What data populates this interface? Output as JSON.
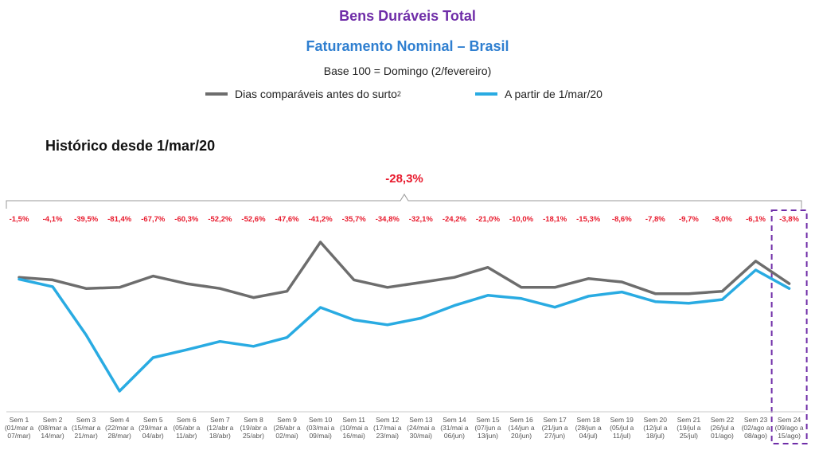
{
  "title": "Bens Duráveis Total",
  "subtitle": "Faturamento Nominal – Brasil",
  "base_note": "Base 100 = Domingo (2/fevereiro)",
  "legend": {
    "gray": {
      "label": "Dias comparáveis antes do surto",
      "sup": "2",
      "color": "#6d6d6d"
    },
    "blue": {
      "label": "A partir de 1/mar/20",
      "color": "#29abe2"
    }
  },
  "section_title": "Histórico desde 1/mar/20",
  "total_change": "-28,3%",
  "colors": {
    "negative": "#e8192c",
    "title": "#6f2da8",
    "subtitle": "#2f7fd0",
    "highlight": "#6f2da8"
  },
  "chart_data": {
    "type": "line",
    "x": [
      "Sem 1",
      "Sem 2",
      "Sem 3",
      "Sem 4",
      "Sem 5",
      "Sem 6",
      "Sem 7",
      "Sem 8",
      "Sem 9",
      "Sem 10",
      "Sem 11",
      "Sem 12",
      "Sem 13",
      "Sem 14",
      "Sem 15",
      "Sem 16",
      "Sem 17",
      "Sem 18",
      "Sem 19",
      "Sem 20",
      "Sem 21",
      "Sem 22",
      "Sem 23",
      "Sem 24"
    ],
    "x_sublabels": [
      "(01/mar a 07/mar)",
      "(08/mar a 14/mar)",
      "(15/mar a 21/mar)",
      "(22/mar a 28/mar)",
      "(29/mar a 04/abr)",
      "(05/abr a 11/abr)",
      "(12/abr a 18/abr)",
      "(19/abr a 25/abr)",
      "(26/abr a 02/mai)",
      "(03/mai a 09/mai)",
      "(10/mai a 16/mai)",
      "(17/mai a 23/mai)",
      "(24/mai a 30/mai)",
      "(31/mai a 06/jun)",
      "(07/jun a 13/jun)",
      "(14/jun a 20/jun)",
      "(21/jun a 27/jun)",
      "(28/jun a 04/jul)",
      "(05/jul a 11/jul)",
      "(12/jul a 18/jul)",
      "(19/jul a 25/jul)",
      "(26/jul a 01/ago)",
      "(02/ago a 08/ago)",
      "(09/ago a 15/ago)"
    ],
    "series": [
      {
        "name": "Dias comparáveis antes do surto2",
        "color": "#6d6d6d",
        "values": [
          100.0,
          97.9,
          90.8,
          91.7,
          101.1,
          94.8,
          90.8,
          83.3,
          88.5,
          129.2,
          97.9,
          91.7,
          95.8,
          100.0,
          108.3,
          91.7,
          91.7,
          99.0,
          96.2,
          86.5,
          86.5,
          88.5,
          113.5,
          94.8
        ]
      },
      {
        "name": "A partir de 1/mar/20",
        "color": "#29abe2",
        "values": [
          98.5,
          92.3,
          52.4,
          5.8,
          33.5,
          40.0,
          46.9,
          42.9,
          50.2,
          75.1,
          64.8,
          60.7,
          66.2,
          76.7,
          85.1,
          82.5,
          75.3,
          84.4,
          87.9,
          79.9,
          78.5,
          81.6,
          106.1,
          90.8
        ]
      }
    ],
    "point_labels": [
      "-1,5%",
      "-4,1%",
      "-39,5%",
      "-81,4%",
      "-67,7%",
      "-60,3%",
      "-52,2%",
      "-52,6%",
      "-47,6%",
      "-41,2%",
      "-35,7%",
      "-34,8%",
      "-32,1%",
      "-24,2%",
      "-21,0%",
      "-10,0%",
      "-18,1%",
      "-15,3%",
      "-8,6%",
      "-7,8%",
      "-9,7%",
      "-8,0%",
      "-6,1%",
      "-3,8%"
    ],
    "ylim": [
      0,
      140
    ],
    "grid": false,
    "legend_position": "top-center",
    "highlighted_category": "Sem 24"
  }
}
